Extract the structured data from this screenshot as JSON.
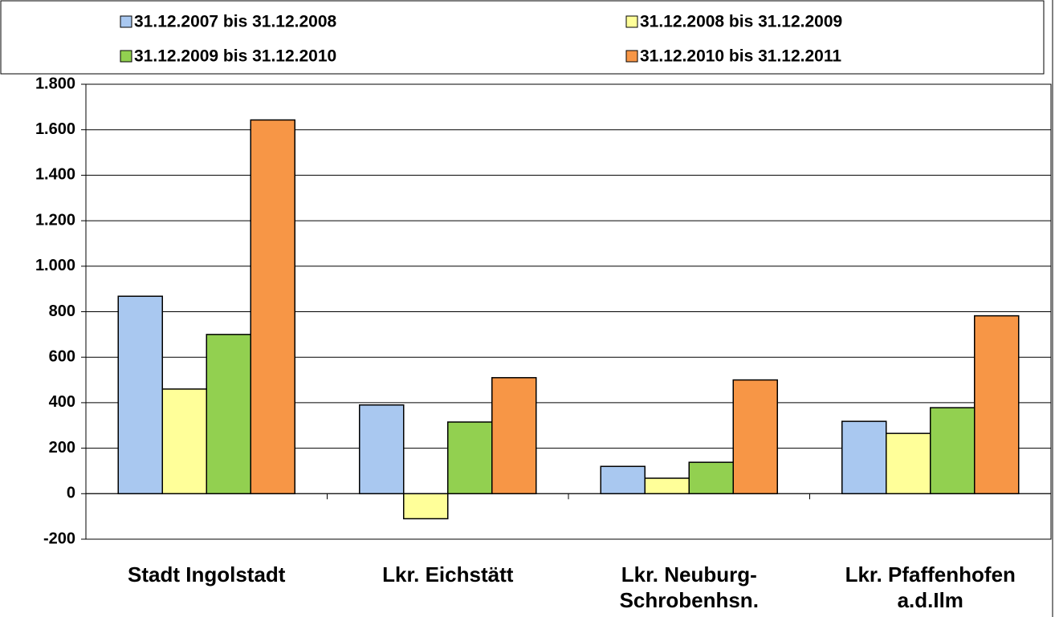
{
  "chart_data": {
    "type": "bar",
    "categories": [
      "Stadt Ingolstadt",
      "Lkr. Eichstätt",
      "Lkr. Neuburg-\nSchrobenhsn.",
      "Lkr. Pfaffenhofen\na.d.Ilm"
    ],
    "series": [
      {
        "name": "31.12.2007 bis 31.12.2008",
        "color": "#a9c8f0",
        "values": [
          868,
          390,
          120,
          318
        ]
      },
      {
        "name": "31.12.2008 bis 31.12.2009",
        "color": "#ffff99",
        "values": [
          460,
          -110,
          68,
          265
        ]
      },
      {
        "name": "31.12.2009 bis 31.12.2010",
        "color": "#92d050",
        "values": [
          700,
          315,
          138,
          378
        ]
      },
      {
        "name": "31.12.2010 bis 31.12.2011",
        "color": "#f79646",
        "values": [
          1643,
          510,
          500,
          782
        ]
      }
    ],
    "ylim": [
      -200,
      1800
    ],
    "yticks": [
      -200,
      0,
      200,
      400,
      600,
      800,
      {
        "value": 1000,
        "label": "1.000"
      },
      {
        "value": 1200,
        "label": "1.200"
      },
      {
        "value": 1400,
        "label": "1.400"
      },
      {
        "value": 1600,
        "label": "1.600"
      },
      {
        "value": 1800,
        "label": "1.800"
      }
    ],
    "grid": true,
    "legend": "top"
  }
}
